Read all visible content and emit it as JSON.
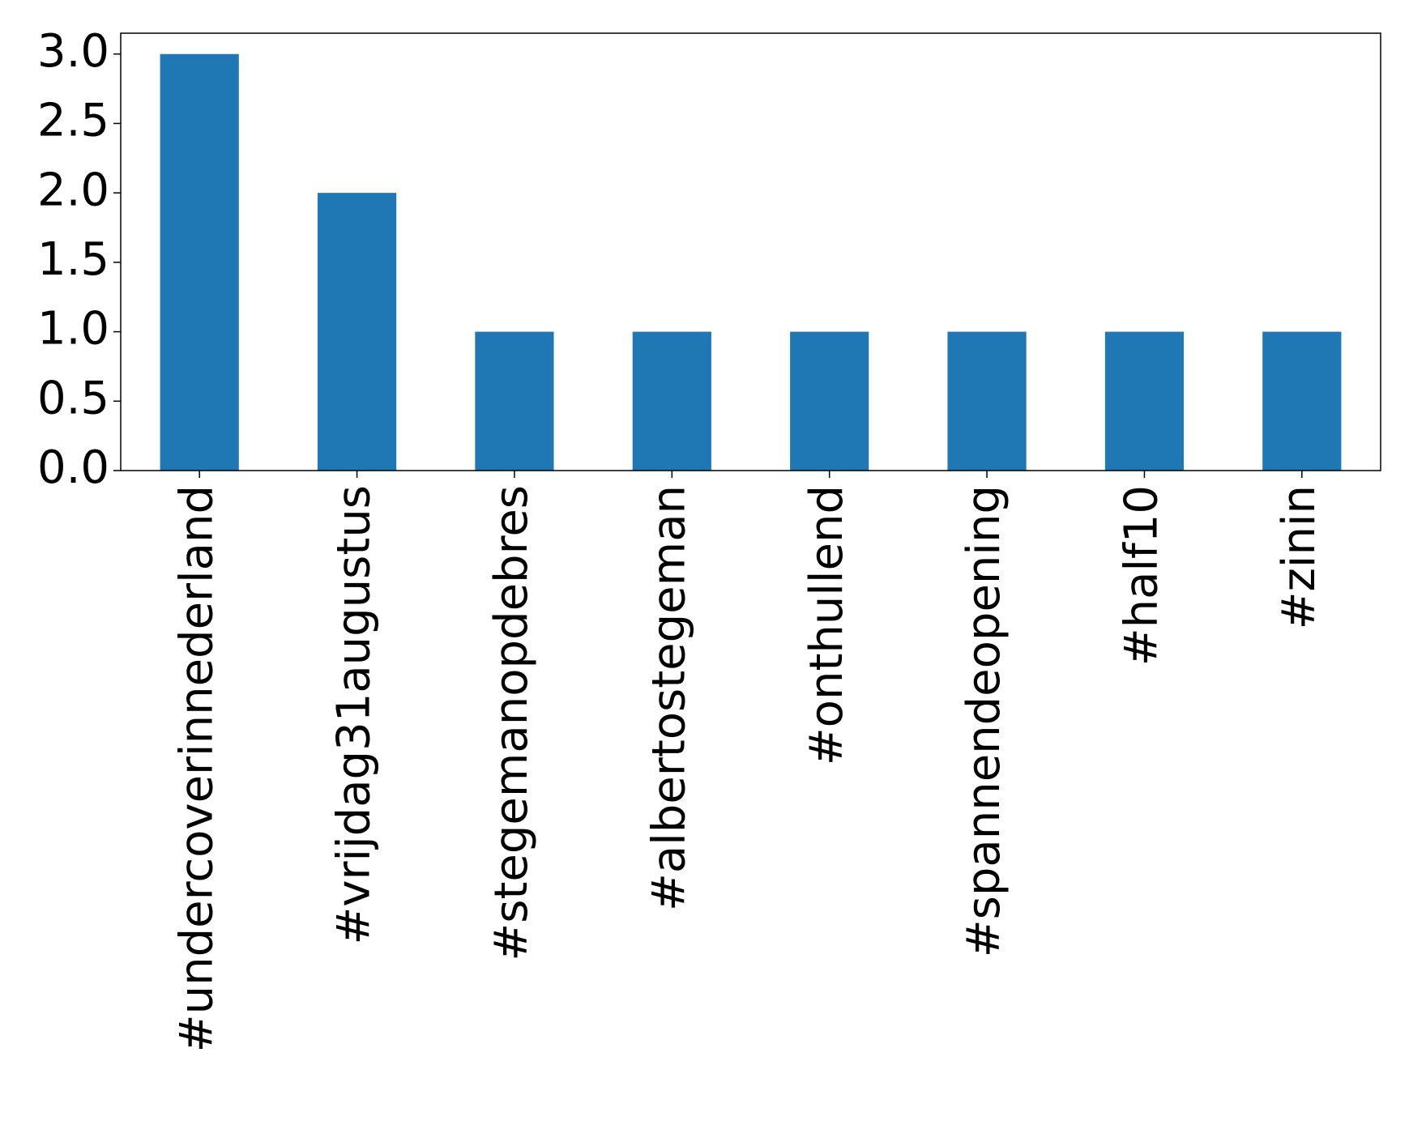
{
  "chart_data": {
    "type": "bar",
    "categories": [
      "#undercoverinnederland",
      "#vrijdag31augustus",
      "#stegemanopdebres",
      "#albertostegeman",
      "#onthullend",
      "#spannendeopening",
      "#half10",
      "#zinin"
    ],
    "values": [
      3,
      2,
      1,
      1,
      1,
      1,
      1,
      1
    ],
    "color": "#1f77b4",
    "ylim": [
      0,
      3.15
    ],
    "yticks": [
      {
        "value": 0,
        "label": "0.0"
      },
      {
        "value": 0.5,
        "label": "0.5"
      },
      {
        "value": 1,
        "label": "1.0"
      },
      {
        "value": 1.5,
        "label": "1.5"
      },
      {
        "value": 2,
        "label": "2.0"
      },
      {
        "value": 2.5,
        "label": "2.5"
      },
      {
        "value": 3,
        "label": "3.0"
      }
    ],
    "grid": false
  }
}
